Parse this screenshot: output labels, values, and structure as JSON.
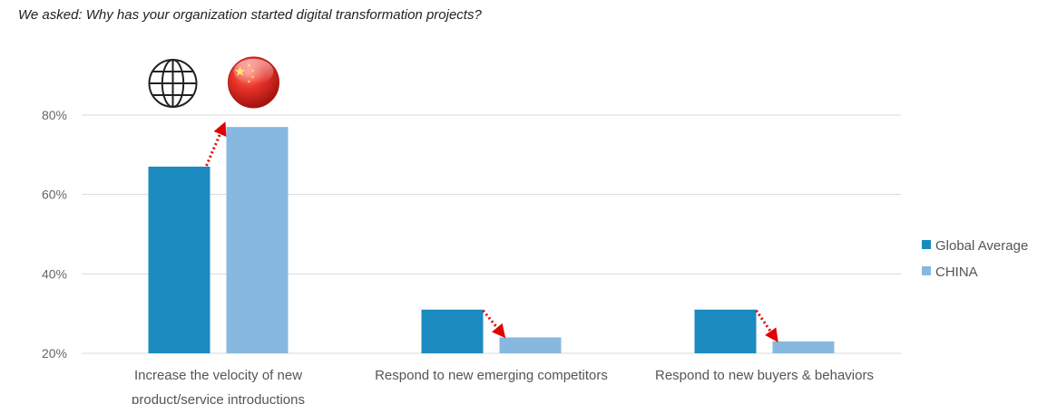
{
  "chart_data": {
    "type": "bar",
    "title": "We asked: Why has your organization started digital transformation projects?",
    "categories": [
      [
        "Increase the velocity of new",
        "product/service introductions"
      ],
      [
        "Respond to new emerging competitors"
      ],
      [
        "Respond to new buyers & behaviors"
      ]
    ],
    "series": [
      {
        "name": "Global Average",
        "color": "#1b8bbf",
        "values": [
          67,
          31,
          31
        ]
      },
      {
        "name": "CHINA",
        "color": "#87b9e0",
        "values": [
          77,
          24,
          23
        ]
      }
    ],
    "yticks": [
      20,
      40,
      60,
      80
    ],
    "ylim": [
      20,
      90
    ],
    "grid": true,
    "legend": "right",
    "annotations": [
      {
        "type": "arrow",
        "direction": "up",
        "from_series": "Global Average",
        "to_series": "CHINA",
        "category_index": 0,
        "color": "#e00000"
      },
      {
        "type": "arrow",
        "direction": "down",
        "from_series": "Global Average",
        "to_series": "CHINA",
        "category_index": 1,
        "color": "#e00000"
      },
      {
        "type": "arrow",
        "direction": "down",
        "from_series": "Global Average",
        "to_series": "CHINA",
        "category_index": 2,
        "color": "#e00000"
      }
    ],
    "icons": [
      {
        "name": "globe-icon",
        "above_series": "Global Average"
      },
      {
        "name": "china-flag-icon",
        "above_series": "CHINA"
      }
    ]
  }
}
